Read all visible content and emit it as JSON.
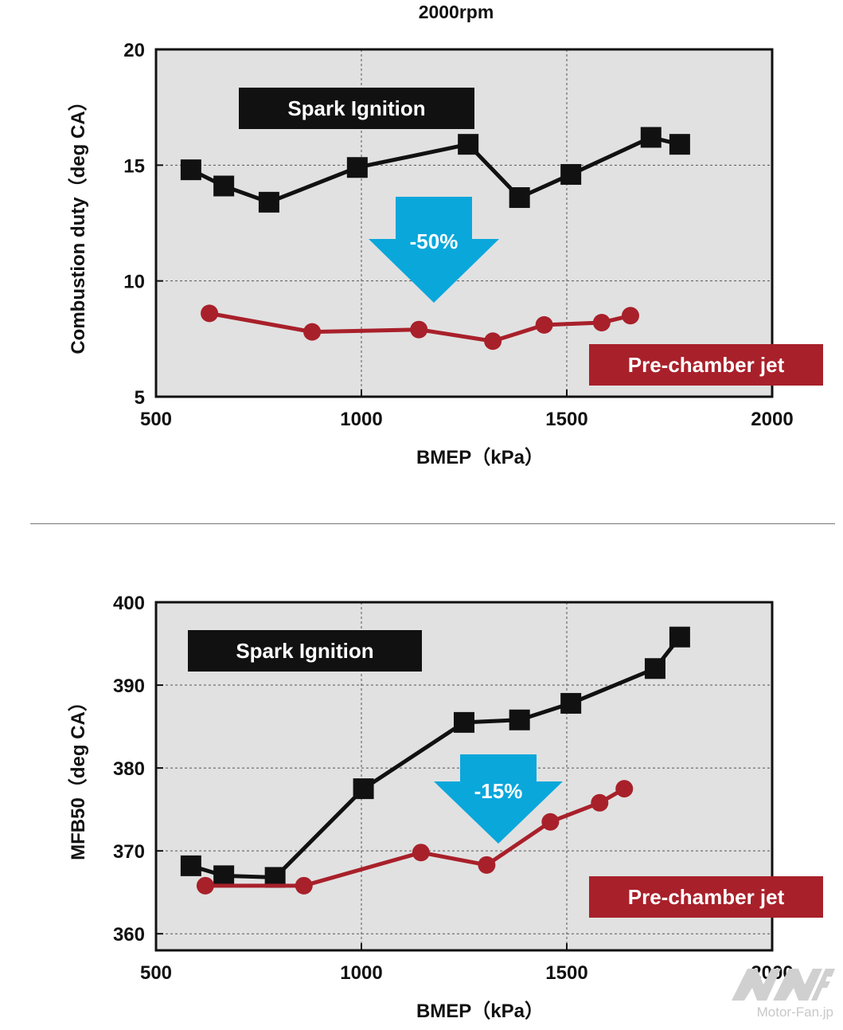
{
  "header": {
    "title": "2000rpm"
  },
  "chart_data": [
    {
      "type": "line",
      "title": "2000rpm",
      "xlabel": "BMEP（kPa）",
      "ylabel": "Combustion duty（deg CA）",
      "xlim": [
        500,
        2000
      ],
      "ylim": [
        5,
        20
      ],
      "xticks": [
        "500",
        "1000",
        "1500",
        "2000"
      ],
      "yticks": [
        "5",
        "10",
        "15",
        "20"
      ],
      "grid": true,
      "series": [
        {
          "name": "Spark Ignition",
          "color": "#111111",
          "marker": "square",
          "x": [
            585,
            665,
            775,
            990,
            1260,
            1385,
            1510,
            1705,
            1775
          ],
          "y": [
            14.8,
            14.1,
            13.4,
            14.9,
            15.9,
            13.6,
            14.6,
            16.2,
            15.9
          ]
        },
        {
          "name": "Pre-chamber jet",
          "color": "#a8202a",
          "marker": "circle",
          "x": [
            630,
            880,
            1140,
            1320,
            1445,
            1585,
            1655
          ],
          "y": [
            8.6,
            7.8,
            7.9,
            7.4,
            8.1,
            8.2,
            8.5
          ]
        }
      ],
      "annotation": {
        "text": "-50%",
        "color": "#0aa7db"
      }
    },
    {
      "type": "line",
      "title": "",
      "xlabel": "BMEP（kPa）",
      "ylabel": "MFB50（deg CA）",
      "xlim": [
        500,
        2000
      ],
      "ylim": [
        358,
        400
      ],
      "xticks": [
        "500",
        "1000",
        "1500",
        "2000"
      ],
      "yticks": [
        "360",
        "370",
        "380",
        "390",
        "400"
      ],
      "grid": true,
      "series": [
        {
          "name": "Spark Ignition",
          "color": "#111111",
          "marker": "square",
          "x": [
            585,
            665,
            790,
            1005,
            1250,
            1385,
            1510,
            1715,
            1775
          ],
          "y": [
            368.2,
            367.0,
            366.8,
            377.5,
            385.5,
            385.8,
            387.8,
            392.0,
            395.8
          ]
        },
        {
          "name": "Pre-chamber jet",
          "color": "#a8202a",
          "marker": "circle",
          "x": [
            620,
            860,
            1145,
            1305,
            1460,
            1580,
            1640
          ],
          "y": [
            365.8,
            365.8,
            369.8,
            368.3,
            373.5,
            375.8,
            377.5
          ]
        }
      ],
      "annotation": {
        "text": "-15%",
        "color": "#0aa7db"
      }
    }
  ],
  "watermark": {
    "text": "Motor-Fan.jp"
  }
}
